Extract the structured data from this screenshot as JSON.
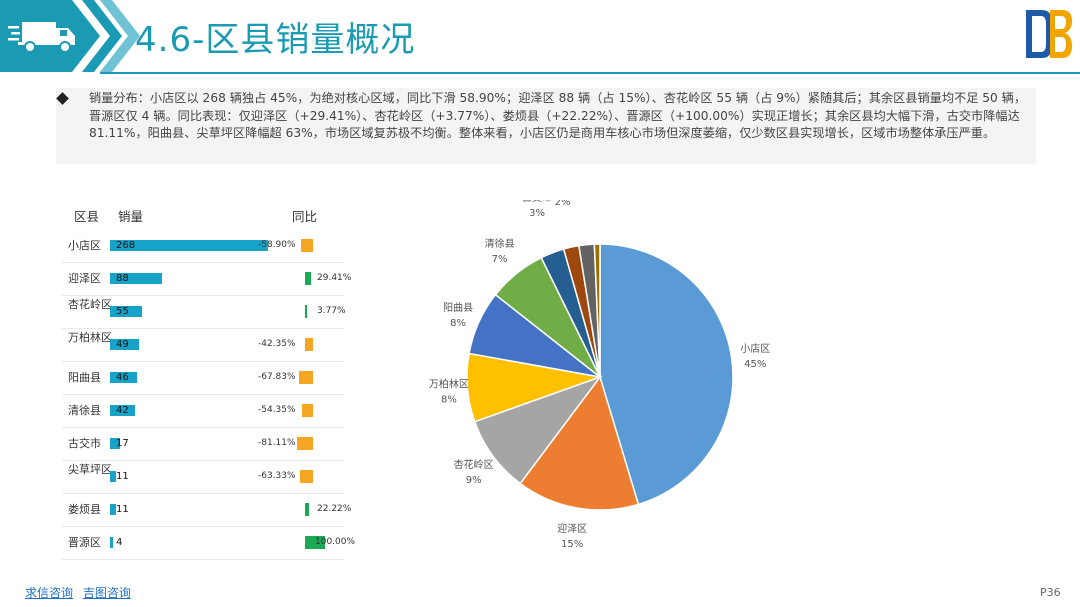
{
  "header": {
    "title": "4.6-区县销量概况"
  },
  "summary": {
    "text": "销量分布：小店区以 268 辆独占 45%，为绝对核心区域，同比下滑 58.90%；迎泽区 88 辆（占 15%）、杏花岭区 55 辆（占 9%）紧随其后；其余区县销量均不足 50 辆，晋源区仅 4 辆。同比表现：仅迎泽区（+29.41%）、杏花岭区（+3.77%）、娄烦县（+22.22%）、晋源区（+100.00%）实现正增长；其余区县均大幅下滑，古交市降幅达 81.11%，阳曲县、尖草坪区降幅超 63%，市场区域复苏极不均衡。整体来看，小店区仍是商用车核心市场但深度萎缩，仅少数区县实现增长，区域市场整体承压严重。"
  },
  "table": {
    "col_district": "区县",
    "col_sales": "销量",
    "col_yoy": "同比",
    "rows": [
      {
        "name": "小店区",
        "sales": "268",
        "yoy": "-58.90%"
      },
      {
        "name": "迎泽区",
        "sales": "88",
        "yoy": "29.41%"
      },
      {
        "name": "杏花岭区",
        "sales": "55",
        "yoy": "3.77%"
      },
      {
        "name": "万柏林区",
        "sales": "49",
        "yoy": "-42.35%"
      },
      {
        "name": "阳曲县",
        "sales": "46",
        "yoy": "-67.83%"
      },
      {
        "name": "清徐县",
        "sales": "42",
        "yoy": "-54.35%"
      },
      {
        "name": "古交市",
        "sales": "17",
        "yoy": "-81.11%"
      },
      {
        "name": "尖草坪区",
        "sales": "11",
        "yoy": "-63.33%"
      },
      {
        "name": "娄烦县",
        "sales": "11",
        "yoy": "22.22%"
      },
      {
        "name": "晋源区",
        "sales": "4",
        "yoy": "100.00%"
      }
    ]
  },
  "chart_data": {
    "type": "pie",
    "categories": [
      "小店区",
      "迎泽区",
      "杏花岭区",
      "万柏林区",
      "阳曲县",
      "清徐县",
      "古交市",
      "尖草坪区",
      "娄烦县",
      "晋源区"
    ],
    "values": [
      268,
      88,
      55,
      49,
      46,
      42,
      17,
      11,
      11,
      4
    ],
    "yoy_percent": [
      -58.9,
      29.41,
      3.77,
      -42.35,
      -67.83,
      -54.35,
      -81.11,
      -63.33,
      22.22,
      100.0
    ],
    "shown_percent_labels": [
      "45%",
      "15%",
      "9%",
      "8%",
      "8%",
      "7%",
      "3%",
      "2%",
      "",
      ""
    ],
    "colors": [
      "#5b9bd5",
      "#ed7d31",
      "#a5a5a5",
      "#ffc000",
      "#4472c4",
      "#70ad47",
      "#255e91",
      "#9e480e",
      "#636363",
      "#997300"
    ],
    "bar_color": "#17a2c8",
    "yoy_negative_color": "#f5a623",
    "yoy_positive_color": "#1aaa55"
  },
  "footer": {
    "link1": "求信咨询",
    "link2": "吉图咨询",
    "page": "P36"
  }
}
